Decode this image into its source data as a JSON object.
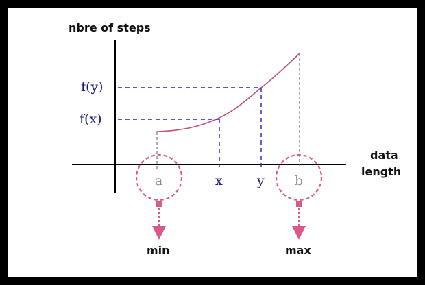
{
  "title": "nbre of steps",
  "x_axis_label_line1": "data",
  "x_axis_label_line2": "length",
  "labels": {
    "fy": "f(y)",
    "fx": "f(x)",
    "a": "a",
    "x": "x",
    "y": "y",
    "b": "b"
  },
  "callouts": {
    "min": "min",
    "max": "max"
  },
  "colors": {
    "axis": "#000000",
    "curve": "#c0507a",
    "guide_blue": "#2222bb",
    "guide_gray": "#777777",
    "highlight": "#d85a8a",
    "label_navy": "#1b1b7a",
    "label_gray": "#8a8aa0"
  }
}
